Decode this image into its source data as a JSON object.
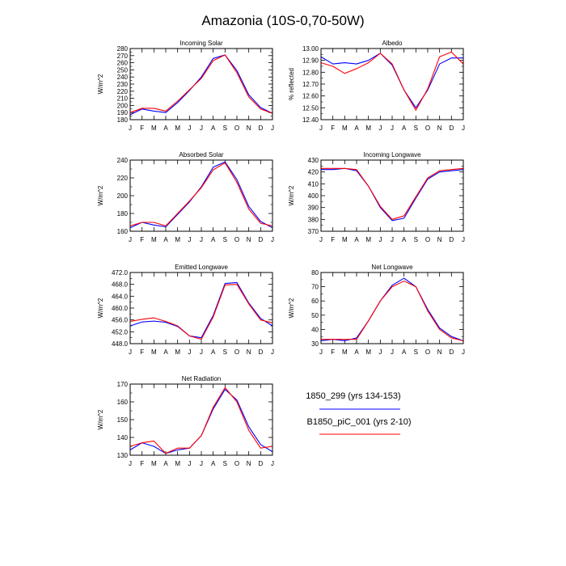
{
  "figure": {
    "title": "Amazonia (10S-0,70-50W)"
  },
  "legend": {
    "entries": [
      {
        "label": "1850_299 (yrs 134-153)",
        "color": "#0000ff"
      },
      {
        "label": "B1850_piC_001 (yrs 2-10)",
        "color": "#ff0000"
      }
    ]
  },
  "chart_data": [
    {
      "type": "line",
      "title": "Incoming Solar",
      "ylabel": "W/m^2",
      "categories": [
        "J",
        "F",
        "M",
        "A",
        "M",
        "J",
        "J",
        "A",
        "S",
        "O",
        "N",
        "D",
        "J"
      ],
      "ylim": [
        180,
        280
      ],
      "yticks": [
        180,
        190,
        200,
        210,
        220,
        230,
        240,
        250,
        260,
        270,
        280
      ],
      "ydec": 0,
      "series": [
        {
          "name": "1850_299 (yrs 134-153)",
          "color": "#0000ff",
          "values": [
            187,
            195,
            192,
            190,
            204,
            221,
            240,
            266,
            271,
            249,
            215,
            197,
            189
          ]
        },
        {
          "name": "B1850_piC_001 (yrs 2-10)",
          "color": "#ff0000",
          "values": [
            190,
            196,
            196,
            192,
            206,
            222,
            238,
            263,
            271,
            246,
            212,
            195,
            189
          ]
        }
      ]
    },
    {
      "type": "line",
      "title": "Albedo",
      "ylabel": "% reflected",
      "categories": [
        "J",
        "F",
        "M",
        "A",
        "M",
        "J",
        "J",
        "A",
        "S",
        "O",
        "N",
        "D",
        "J"
      ],
      "ylim": [
        12.4,
        13.0
      ],
      "yticks": [
        12.4,
        12.5,
        12.6,
        12.7,
        12.8,
        12.9,
        13.0
      ],
      "ydec": 2,
      "series": [
        {
          "name": "1850_299 (yrs 134-153)",
          "color": "#0000ff",
          "values": [
            12.93,
            12.87,
            12.88,
            12.87,
            12.9,
            12.96,
            12.86,
            12.65,
            12.5,
            12.65,
            12.87,
            12.92,
            12.92
          ]
        },
        {
          "name": "B1850_piC_001 (yrs 2-10)",
          "color": "#ff0000",
          "values": [
            12.88,
            12.85,
            12.79,
            12.83,
            12.88,
            12.96,
            12.87,
            12.65,
            12.48,
            12.66,
            12.93,
            12.97,
            12.87
          ]
        }
      ]
    },
    {
      "type": "line",
      "title": "Absorbed Solar",
      "ylabel": "W/m^2",
      "categories": [
        "J",
        "F",
        "M",
        "A",
        "M",
        "J",
        "J",
        "A",
        "S",
        "O",
        "N",
        "D",
        "J"
      ],
      "ylim": [
        160,
        240
      ],
      "yticks": [
        160,
        180,
        200,
        220,
        240
      ],
      "ydec": 0,
      "series": [
        {
          "name": "1850_299 (yrs 134-153)",
          "color": "#0000ff",
          "values": [
            164,
            170,
            167,
            165,
            179,
            193,
            210,
            232,
            238,
            218,
            188,
            171,
            164
          ]
        },
        {
          "name": "B1850_piC_001 (yrs 2-10)",
          "color": "#ff0000",
          "values": [
            166,
            170,
            170,
            166,
            180,
            194,
            209,
            229,
            237,
            215,
            185,
            169,
            166
          ]
        }
      ]
    },
    {
      "type": "line",
      "title": "Incoming Longwave",
      "ylabel": "W/m^2",
      "categories": [
        "J",
        "F",
        "M",
        "A",
        "M",
        "J",
        "J",
        "A",
        "S",
        "O",
        "N",
        "D",
        "J"
      ],
      "ylim": [
        370,
        430
      ],
      "yticks": [
        370,
        380,
        390,
        400,
        410,
        420,
        430
      ],
      "ydec": 0,
      "series": [
        {
          "name": "1850_299 (yrs 134-153)",
          "color": "#0000ff",
          "values": [
            422,
            422,
            423,
            421,
            408,
            390,
            379,
            381,
            398,
            414,
            420,
            421,
            422
          ]
        },
        {
          "name": "B1850_piC_001 (yrs 2-10)",
          "color": "#ff0000",
          "values": [
            423,
            423,
            423,
            422,
            408,
            391,
            380,
            383,
            399,
            415,
            421,
            422,
            423
          ]
        }
      ]
    },
    {
      "type": "line",
      "title": "Emitted Longwave",
      "ylabel": "W/m^2",
      "categories": [
        "J",
        "F",
        "M",
        "A",
        "M",
        "J",
        "J",
        "A",
        "S",
        "O",
        "N",
        "D",
        "J"
      ],
      "ylim": [
        448.0,
        472.0
      ],
      "yticks": [
        448.0,
        452.0,
        456.0,
        460.0,
        464.0,
        468.0,
        472.0
      ],
      "ydec": 1,
      "series": [
        {
          "name": "1850_299 (yrs 134-153)",
          "color": "#0000ff",
          "values": [
            454.0,
            455.3,
            455.6,
            455.2,
            453.8,
            450.6,
            450.0,
            457.5,
            468.3,
            468.6,
            461.7,
            456.5,
            454.0
          ]
        },
        {
          "name": "B1850_piC_001 (yrs 2-10)",
          "color": "#ff0000",
          "values": [
            455.5,
            456.2,
            456.7,
            455.5,
            454.0,
            450.6,
            449.5,
            457.0,
            467.8,
            468.0,
            461.4,
            456.0,
            455.0
          ]
        }
      ]
    },
    {
      "type": "line",
      "title": "Net Longwave",
      "ylabel": "W/m^2",
      "categories": [
        "J",
        "F",
        "M",
        "A",
        "M",
        "J",
        "J",
        "A",
        "S",
        "O",
        "N",
        "D",
        "J"
      ],
      "ylim": [
        30,
        80
      ],
      "yticks": [
        30,
        40,
        50,
        60,
        70,
        80
      ],
      "ydec": 0,
      "series": [
        {
          "name": "1850_299 (yrs 134-153)",
          "color": "#0000ff",
          "values": [
            32,
            33,
            32,
            34,
            46,
            60,
            71,
            76,
            70,
            54,
            41,
            35,
            32
          ]
        },
        {
          "name": "B1850_piC_001 (yrs 2-10)",
          "color": "#ff0000",
          "values": [
            33,
            33,
            33,
            33,
            46,
            60,
            70,
            74,
            70,
            53,
            40,
            34,
            32
          ]
        }
      ]
    },
    {
      "type": "line",
      "title": "Net Radiation",
      "ylabel": "W/m^2",
      "categories": [
        "J",
        "F",
        "M",
        "A",
        "M",
        "J",
        "J",
        "A",
        "S",
        "O",
        "N",
        "D",
        "J"
      ],
      "ylim": [
        130,
        170
      ],
      "yticks": [
        130,
        140,
        150,
        160,
        170
      ],
      "ydec": 0,
      "series": [
        {
          "name": "1850_299 (yrs 134-153)",
          "color": "#0000ff",
          "values": [
            133,
            137,
            135,
            131,
            133,
            134,
            141,
            156,
            167,
            161,
            146,
            136,
            132
          ]
        },
        {
          "name": "B1850_piC_001 (yrs 2-10)",
          "color": "#ff0000",
          "values": [
            135,
            137,
            138,
            131,
            134,
            134,
            141,
            157,
            168,
            160,
            144,
            134,
            135
          ]
        }
      ]
    }
  ]
}
